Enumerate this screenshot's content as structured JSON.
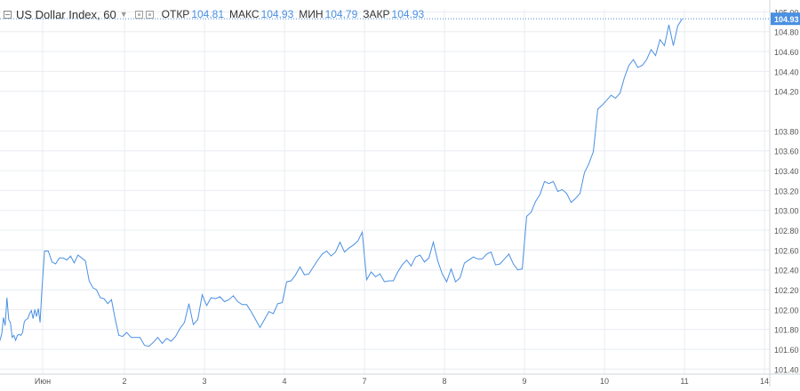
{
  "header": {
    "symbol": "US Dollar Index, 60",
    "open_label": "ОТКР",
    "open_value": "104.81",
    "high_label": "МАКС",
    "high_value": "104.93",
    "low_label": "МИН",
    "low_value": "104.79",
    "close_label": "ЗАКР",
    "close_value": "104.93"
  },
  "colors": {
    "line": "#4a90e2",
    "grid": "#e8ecf1",
    "axis": "#555555",
    "price_tag_bg": "#4a90e2",
    "price_tag_text": "#ffffff"
  },
  "chart_data": {
    "type": "line",
    "title": "US Dollar Index, 60",
    "xlabel": "",
    "ylabel": "",
    "x_ticks": [
      "Июн",
      "2",
      "3",
      "4",
      "7",
      "8",
      "9",
      "10",
      "11",
      "14"
    ],
    "y_ticks": [
      "101.40",
      "101.60",
      "101.80",
      "102.00",
      "102.20",
      "102.40",
      "102.60",
      "102.80",
      "103.00",
      "103.20",
      "103.40",
      "103.60",
      "103.80",
      "104.20",
      "104.40",
      "104.60",
      "104.80",
      "105.00"
    ],
    "ylim": [
      101.35,
      105.03
    ],
    "grid": true,
    "last_price": "104.93",
    "series": [
      {
        "points": [
          [
            "Июн",
            101.73
          ],
          [
            "Июн",
            101.69
          ],
          [
            "Июн",
            101.75
          ],
          [
            "Июн",
            101.92
          ],
          [
            "Июн",
            101.84
          ],
          [
            "Июн",
            102.12
          ],
          [
            "Июн",
            101.9
          ],
          [
            "Июн",
            101.87
          ],
          [
            "Июн",
            101.72
          ],
          [
            "Июн",
            101.74
          ],
          [
            "Июн",
            101.69
          ],
          [
            "Июн",
            101.74
          ],
          [
            "Июн",
            101.75
          ],
          [
            "Июн",
            101.74
          ],
          [
            "Июн",
            101.77
          ],
          [
            "Июн",
            101.88
          ],
          [
            "Июн",
            101.9
          ],
          [
            "Июн",
            101.91
          ],
          [
            "Июн",
            101.96
          ],
          [
            "Июн",
            101.99
          ],
          [
            "Июн",
            101.91
          ],
          [
            "Июн",
            102.0
          ],
          [
            "Июн",
            101.93
          ],
          [
            "Июн",
            102.01
          ],
          [
            "Июн",
            101.87
          ],
          [
            "Июн",
            102.18
          ],
          [
            "2",
            102.59
          ],
          [
            "2",
            102.59
          ],
          [
            "2",
            102.48
          ],
          [
            "2",
            102.46
          ],
          [
            "2",
            102.52
          ],
          [
            "2",
            102.52
          ],
          [
            "2",
            102.5
          ],
          [
            "2",
            102.54
          ],
          [
            "2",
            102.47
          ],
          [
            "2",
            102.55
          ],
          [
            "2",
            102.52
          ],
          [
            "2",
            102.49
          ],
          [
            "2",
            102.29
          ],
          [
            "2",
            102.22
          ],
          [
            "2",
            102.2
          ],
          [
            "2",
            102.12
          ],
          [
            "2",
            102.11
          ],
          [
            "2",
            102.06
          ],
          [
            "2",
            102.1
          ],
          [
            "2",
            101.91
          ],
          [
            "2",
            101.74
          ],
          [
            "2",
            101.73
          ],
          [
            "3",
            101.77
          ],
          [
            "3",
            101.72
          ],
          [
            "3",
            101.72
          ],
          [
            "3",
            101.72
          ],
          [
            "3",
            101.64
          ],
          [
            "3",
            101.63
          ],
          [
            "3",
            101.67
          ],
          [
            "3",
            101.72
          ],
          [
            "3",
            101.66
          ],
          [
            "3",
            101.71
          ],
          [
            "3",
            101.68
          ],
          [
            "3",
            101.73
          ],
          [
            "3",
            101.81
          ],
          [
            "3",
            101.87
          ],
          [
            "3",
            102.06
          ],
          [
            "3",
            101.85
          ],
          [
            "3",
            101.9
          ],
          [
            "3",
            102.15
          ],
          [
            "4",
            102.04
          ],
          [
            "4",
            102.12
          ],
          [
            "4",
            102.11
          ],
          [
            "4",
            102.13
          ],
          [
            "4",
            102.08
          ],
          [
            "4",
            102.1
          ],
          [
            "4",
            102.14
          ],
          [
            "4",
            102.08
          ],
          [
            "4",
            102.05
          ],
          [
            "4",
            102.05
          ],
          [
            "4",
            101.98
          ],
          [
            "4",
            101.9
          ],
          [
            "4",
            101.82
          ],
          [
            "4",
            101.9
          ],
          [
            "4",
            101.98
          ],
          [
            "4",
            101.96
          ],
          [
            "4",
            102.06
          ],
          [
            "4",
            102.07
          ],
          [
            "7",
            102.28
          ],
          [
            "7",
            102.29
          ],
          [
            "7",
            102.35
          ],
          [
            "7",
            102.43
          ],
          [
            "7",
            102.35
          ],
          [
            "7",
            102.36
          ],
          [
            "7",
            102.43
          ],
          [
            "7",
            102.5
          ],
          [
            "7",
            102.56
          ],
          [
            "7",
            102.59
          ],
          [
            "7",
            102.54
          ],
          [
            "7",
            102.58
          ],
          [
            "7",
            102.68
          ],
          [
            "7",
            102.58
          ],
          [
            "7",
            102.62
          ],
          [
            "7",
            102.65
          ],
          [
            "7",
            102.69
          ],
          [
            "7",
            102.78
          ],
          [
            "8",
            102.3
          ],
          [
            "8",
            102.38
          ],
          [
            "8",
            102.33
          ],
          [
            "8",
            102.36
          ],
          [
            "8",
            102.28
          ],
          [
            "8",
            102.29
          ],
          [
            "8",
            102.29
          ],
          [
            "8",
            102.38
          ],
          [
            "8",
            102.45
          ],
          [
            "8",
            102.5
          ],
          [
            "8",
            102.44
          ],
          [
            "8",
            102.53
          ],
          [
            "8",
            102.55
          ],
          [
            "8",
            102.48
          ],
          [
            "8",
            102.52
          ],
          [
            "8",
            102.68
          ],
          [
            "8",
            102.49
          ],
          [
            "8",
            102.36
          ],
          [
            "9",
            102.28
          ],
          [
            "9",
            102.41
          ],
          [
            "9",
            102.28
          ],
          [
            "9",
            102.32
          ],
          [
            "9",
            102.47
          ],
          [
            "9",
            102.5
          ],
          [
            "9",
            102.53
          ],
          [
            "9",
            102.51
          ],
          [
            "9",
            102.51
          ],
          [
            "9",
            102.56
          ],
          [
            "9",
            102.58
          ],
          [
            "9",
            102.45
          ],
          [
            "9",
            102.46
          ],
          [
            "9",
            102.51
          ],
          [
            "9",
            102.56
          ],
          [
            "9",
            102.46
          ],
          [
            "9",
            102.4
          ],
          [
            "9",
            102.41
          ],
          [
            "10",
            102.94
          ],
          [
            "10",
            102.98
          ],
          [
            "10",
            103.09
          ],
          [
            "10",
            103.16
          ],
          [
            "10",
            103.29
          ],
          [
            "10",
            103.27
          ],
          [
            "10",
            103.29
          ],
          [
            "10",
            103.19
          ],
          [
            "10",
            103.21
          ],
          [
            "10",
            103.17
          ],
          [
            "10",
            103.08
          ],
          [
            "10",
            103.12
          ],
          [
            "10",
            103.17
          ],
          [
            "10",
            103.38
          ],
          [
            "10",
            103.47
          ],
          [
            "10",
            103.59
          ],
          [
            "10",
            104.02
          ],
          [
            "10",
            104.06
          ],
          [
            "11",
            104.11
          ],
          [
            "11",
            104.16
          ],
          [
            "11",
            104.13
          ],
          [
            "11",
            104.18
          ],
          [
            "11",
            104.34
          ],
          [
            "11",
            104.46
          ],
          [
            "11",
            104.52
          ],
          [
            "11",
            104.44
          ],
          [
            "11",
            104.46
          ],
          [
            "11",
            104.52
          ],
          [
            "11",
            104.62
          ],
          [
            "11",
            104.56
          ],
          [
            "11",
            104.72
          ],
          [
            "11",
            104.66
          ],
          [
            "11",
            104.87
          ],
          [
            "11",
            104.66
          ],
          [
            "11",
            104.86
          ],
          [
            "11",
            104.93
          ]
        ]
      }
    ]
  }
}
